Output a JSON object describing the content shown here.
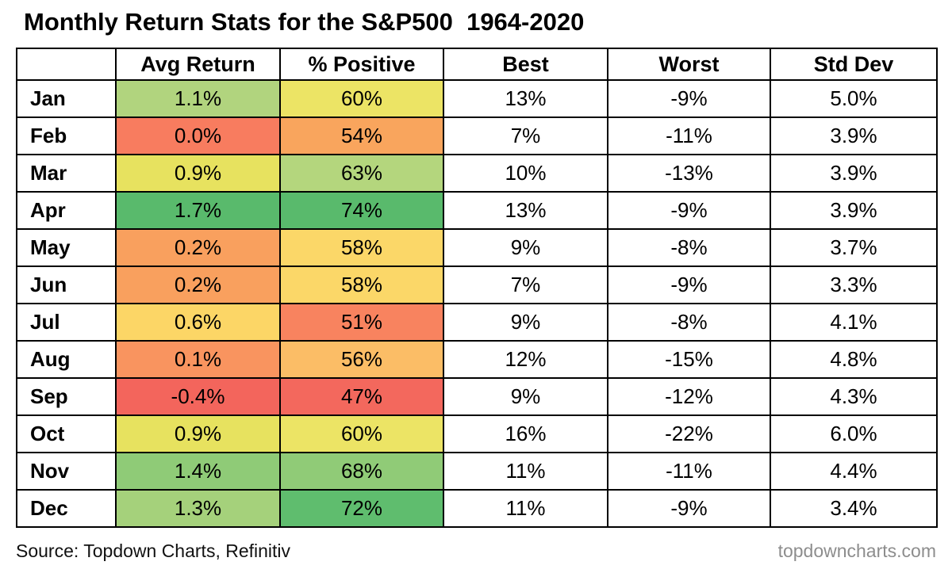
{
  "chart_data": {
    "type": "table",
    "title": "Monthly Return Stats for the S&P500  1964-2020",
    "columns": [
      "",
      "Avg Return",
      "% Positive",
      "Best",
      "Worst",
      "Std Dev"
    ],
    "rows": [
      {
        "month": "Jan",
        "avg_return": "1.1%",
        "pct_positive": "60%",
        "best": "13%",
        "worst": "-9%",
        "std_dev": "5.0%",
        "avg_color": "#b1d47e",
        "pos_color": "#ece465"
      },
      {
        "month": "Feb",
        "avg_return": "0.0%",
        "pct_positive": "54%",
        "best": "7%",
        "worst": "-11%",
        "std_dev": "3.9%",
        "avg_color": "#f87c5f",
        "pos_color": "#f9a55d"
      },
      {
        "month": "Mar",
        "avg_return": "0.9%",
        "pct_positive": "63%",
        "best": "10%",
        "worst": "-13%",
        "std_dev": "3.9%",
        "avg_color": "#e7e25f",
        "pos_color": "#b4d67d"
      },
      {
        "month": "Apr",
        "avg_return": "1.7%",
        "pct_positive": "74%",
        "best": "13%",
        "worst": "-9%",
        "std_dev": "3.9%",
        "avg_color": "#59ba6c",
        "pos_color": "#59ba6c"
      },
      {
        "month": "May",
        "avg_return": "0.2%",
        "pct_positive": "58%",
        "best": "9%",
        "worst": "-8%",
        "std_dev": "3.7%",
        "avg_color": "#f9a05e",
        "pos_color": "#fbd768"
      },
      {
        "month": "Jun",
        "avg_return": "0.2%",
        "pct_positive": "58%",
        "best": "7%",
        "worst": "-9%",
        "std_dev": "3.3%",
        "avg_color": "#f9a05e",
        "pos_color": "#fbd768"
      },
      {
        "month": "Jul",
        "avg_return": "0.6%",
        "pct_positive": "51%",
        "best": "9%",
        "worst": "-8%",
        "std_dev": "4.1%",
        "avg_color": "#fcd666",
        "pos_color": "#f8835f"
      },
      {
        "month": "Aug",
        "avg_return": "0.1%",
        "pct_positive": "56%",
        "best": "12%",
        "worst": "-15%",
        "std_dev": "4.8%",
        "avg_color": "#f9945f",
        "pos_color": "#fbbd66"
      },
      {
        "month": "Sep",
        "avg_return": "-0.4%",
        "pct_positive": "47%",
        "best": "9%",
        "worst": "-12%",
        "std_dev": "4.3%",
        "avg_color": "#f3655c",
        "pos_color": "#f3685d"
      },
      {
        "month": "Oct",
        "avg_return": "0.9%",
        "pct_positive": "60%",
        "best": "16%",
        "worst": "-22%",
        "std_dev": "6.0%",
        "avg_color": "#e7e25f",
        "pos_color": "#ece465"
      },
      {
        "month": "Nov",
        "avg_return": "1.4%",
        "pct_positive": "68%",
        "best": "11%",
        "worst": "-11%",
        "std_dev": "4.4%",
        "avg_color": "#8fcb77",
        "pos_color": "#90cb77"
      },
      {
        "month": "Dec",
        "avg_return": "1.3%",
        "pct_positive": "72%",
        "best": "11%",
        "worst": "-9%",
        "std_dev": "3.4%",
        "avg_color": "#a5d17b",
        "pos_color": "#5fbd6e"
      }
    ],
    "layout": {
      "grid": "black 2px borders",
      "legend": "none",
      "heat_columns": [
        "Avg Return",
        "% Positive"
      ]
    }
  },
  "colors": {
    "background": "#ffffff",
    "border": "#000000",
    "title_text": "#000000",
    "source_text": "#111111",
    "site_text": "#8d8d8d",
    "scale_red": "#f3655c",
    "scale_yellow": "#ece465",
    "scale_green": "#59ba6c"
  },
  "footer": {
    "source": "Source: Topdown Charts, Refinitiv",
    "site": "topdowncharts.com"
  }
}
